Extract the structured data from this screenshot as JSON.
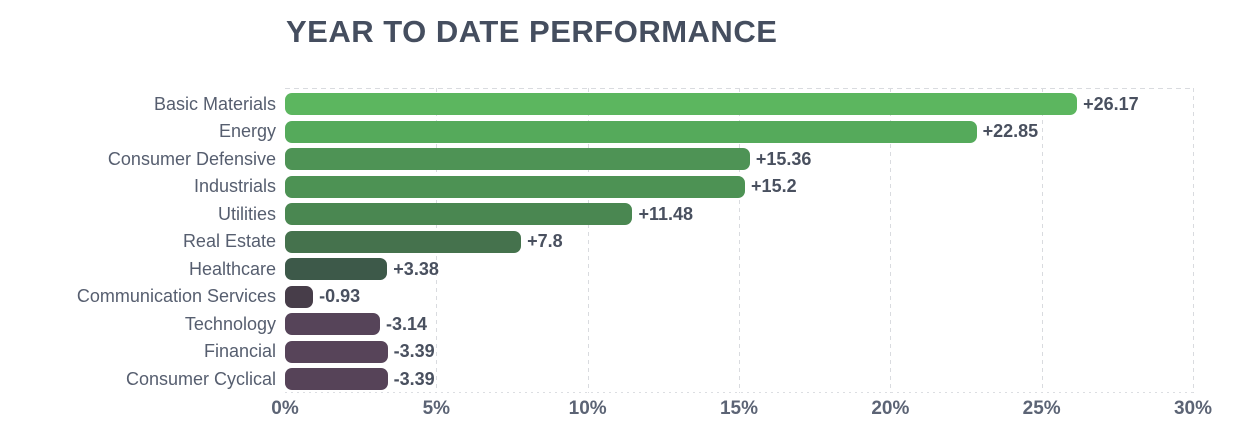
{
  "header": {
    "title": "YEAR TO DATE PERFORMANCE"
  },
  "chart_data": {
    "type": "bar",
    "orientation": "horizontal",
    "title": "YEAR TO DATE PERFORMANCE",
    "xlabel": "",
    "ylabel": "",
    "xlim": [
      0,
      30
    ],
    "grid": "vertical-dashed",
    "bar_length_mode": "absolute-value",
    "categories": [
      "Basic Materials",
      "Energy",
      "Consumer Defensive",
      "Industrials",
      "Utilities",
      "Real Estate",
      "Healthcare",
      "Communication Services",
      "Technology",
      "Financial",
      "Consumer Cyclical"
    ],
    "values": [
      26.17,
      22.85,
      15.36,
      15.2,
      11.48,
      7.8,
      3.38,
      -0.93,
      -3.14,
      -3.39,
      -3.39
    ],
    "value_labels": [
      "+26.17",
      "+22.85",
      "+15.36",
      "+15.2",
      "+11.48",
      "+7.8",
      "+3.38",
      "-0.93",
      "-3.14",
      "-3.39",
      "-3.39"
    ],
    "bar_colors": [
      "#5cb65f",
      "#55aa5b",
      "#4e9355",
      "#4d9254",
      "#4a8751",
      "#45724d",
      "#3d5949",
      "#473d49",
      "#564459",
      "#574459",
      "#564358"
    ],
    "x_ticks": [
      "0%",
      "5%",
      "10%",
      "15%",
      "20%",
      "25%",
      "30%"
    ],
    "colors": {
      "title_text": "#454e5f",
      "category_text": "#565e6f",
      "value_text": "#49505f",
      "tick_text": "#5c6475",
      "gridline": "#d9dbdf",
      "background": "#ffffff"
    }
  }
}
